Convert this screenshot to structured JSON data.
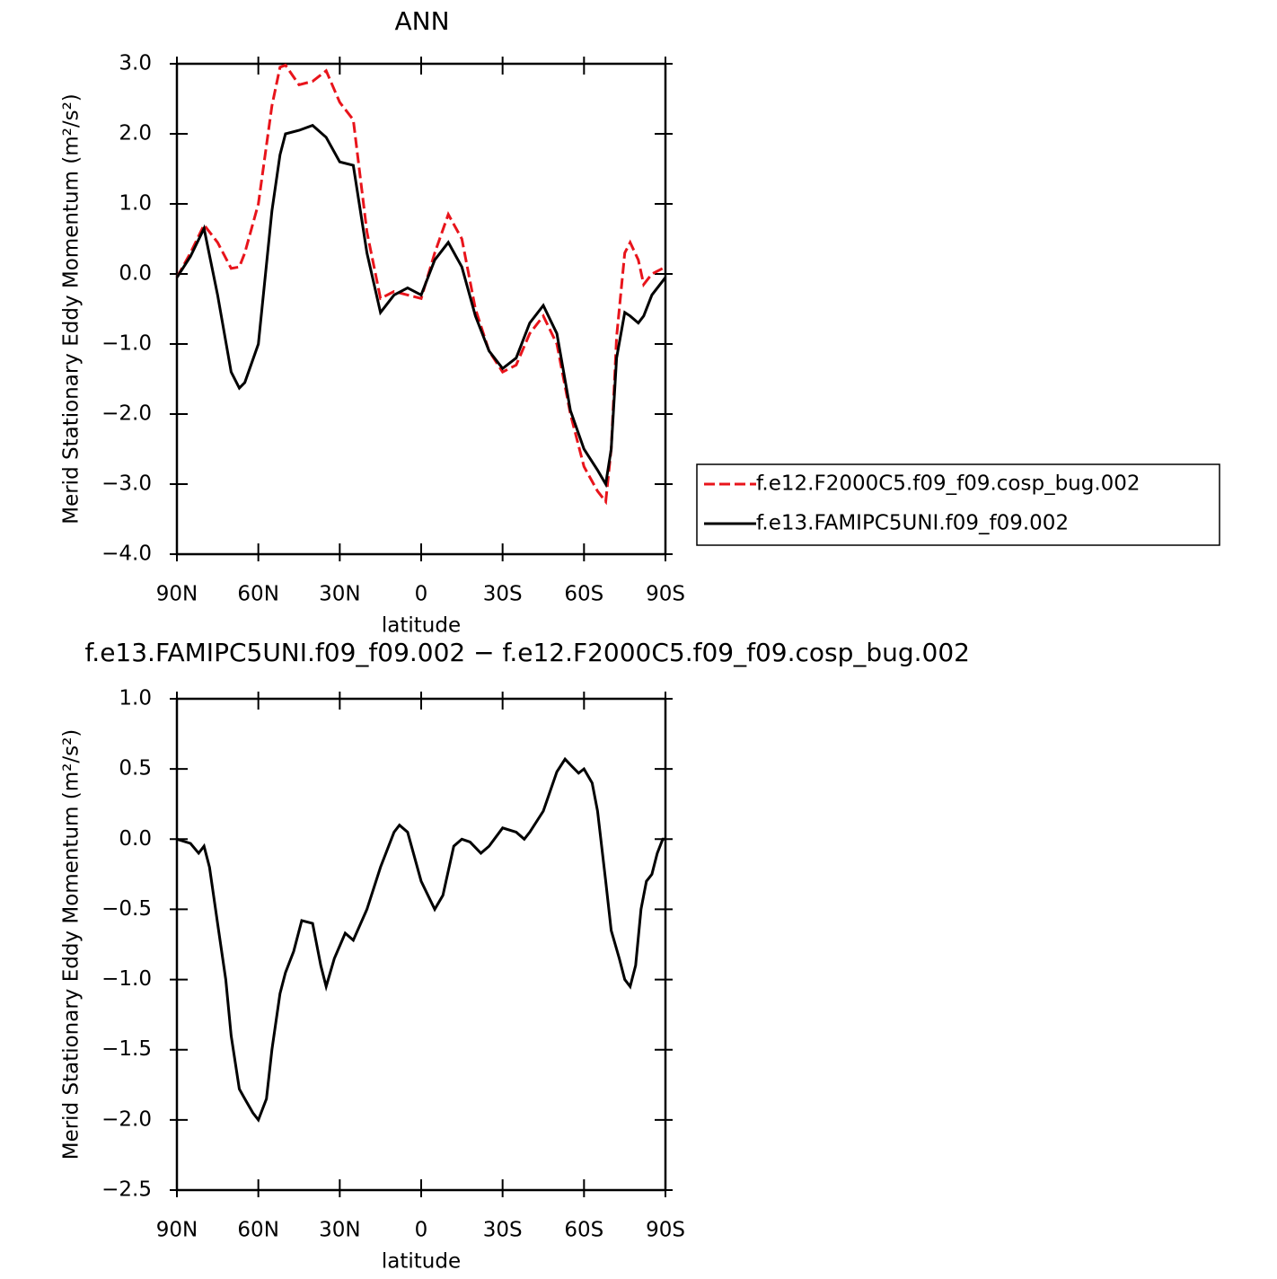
{
  "chart_data": [
    {
      "type": "line",
      "title": "ANN",
      "xlabel": "latitude",
      "ylabel": "Merid Stationary Eddy Momentum (m²/s²)",
      "x": [
        90,
        85,
        80,
        75,
        70,
        67,
        65,
        60,
        55,
        52,
        50,
        45,
        40,
        35,
        30,
        25,
        20,
        15,
        10,
        5,
        0,
        -5,
        -10,
        -15,
        -20,
        -25,
        -30,
        -35,
        -40,
        -45,
        -50,
        -55,
        -60,
        -65,
        -68,
        -70,
        -72,
        -75,
        -77,
        -80,
        -82,
        -85,
        -90
      ],
      "series": [
        {
          "name": "f.e12.F2000C5.f09_f09.cosp_bug.002",
          "color": "#e8141b",
          "linestyle": "dashed",
          "values": [
            -0.05,
            0.3,
            0.7,
            0.45,
            0.08,
            0.1,
            0.3,
            1.0,
            2.4,
            2.95,
            2.98,
            2.7,
            2.75,
            2.9,
            2.45,
            2.2,
            0.6,
            -0.35,
            -0.25,
            -0.3,
            -0.35,
            0.3,
            0.85,
            0.5,
            -0.5,
            -1.1,
            -1.4,
            -1.3,
            -0.85,
            -0.6,
            -1.0,
            -2.0,
            -2.75,
            -3.1,
            -3.25,
            -2.5,
            -0.9,
            0.3,
            0.45,
            0.2,
            -0.15,
            0.0,
            0.1
          ]
        },
        {
          "name": "f.e13.FAMIPC5UNI.f09_f09.002",
          "color": "#000000",
          "linestyle": "solid",
          "values": [
            -0.05,
            0.25,
            0.65,
            -0.3,
            -1.4,
            -1.63,
            -1.55,
            -1.0,
            0.9,
            1.7,
            2.0,
            2.05,
            2.12,
            1.95,
            1.6,
            1.55,
            0.3,
            -0.55,
            -0.3,
            -0.2,
            -0.3,
            0.2,
            0.45,
            0.1,
            -0.6,
            -1.1,
            -1.35,
            -1.2,
            -0.7,
            -0.45,
            -0.85,
            -1.95,
            -2.5,
            -2.8,
            -3.0,
            -2.5,
            -1.2,
            -0.55,
            -0.6,
            -0.7,
            -0.6,
            -0.3,
            -0.05
          ]
        }
      ],
      "xlim": [
        90,
        -90
      ],
      "xticks": [
        {
          "value": 90,
          "label": "90N"
        },
        {
          "value": 60,
          "label": "60N"
        },
        {
          "value": 30,
          "label": "30N"
        },
        0,
        {
          "value": -30,
          "label": "30S"
        },
        {
          "value": -60,
          "label": "60S"
        },
        {
          "value": -90,
          "label": "90S"
        }
      ],
      "ylim": [
        -4,
        3
      ],
      "yticks": [
        {
          "value": 3,
          "label": "3.0"
        },
        {
          "value": 2,
          "label": "2.0"
        },
        {
          "value": 1,
          "label": "1.0"
        },
        {
          "value": 0,
          "label": "0.0"
        },
        {
          "value": -1,
          "label": "−1.0"
        },
        {
          "value": -2,
          "label": "−2.0"
        },
        {
          "value": -3,
          "label": "−3.0"
        },
        {
          "value": -4,
          "label": "−4.0"
        }
      ],
      "legend": "right"
    },
    {
      "type": "line",
      "title": "f.e13.FAMIPC5UNI.f09_f09.002 − f.e12.F2000C5.f09_f09.cosp_bug.002",
      "xlabel": "latitude",
      "ylabel": "Merid Stationary Eddy Momentum (m²/s²)",
      "x": [
        90,
        85,
        82,
        80,
        78,
        75,
        72,
        70,
        67,
        65,
        62,
        60,
        57,
        55,
        52,
        50,
        47,
        44,
        40,
        37,
        35,
        32,
        28,
        25,
        20,
        15,
        10,
        8,
        5,
        0,
        -5,
        -8,
        -12,
        -15,
        -18,
        -22,
        -25,
        -30,
        -35,
        -38,
        -40,
        -45,
        -50,
        -53,
        -55,
        -58,
        -60,
        -63,
        -65,
        -68,
        -70,
        -73,
        -75,
        -77,
        -79,
        -81,
        -83,
        -85,
        -87,
        -89,
        -90
      ],
      "series": [
        {
          "color": "#000000",
          "linestyle": "solid",
          "values": [
            0.0,
            -0.03,
            -0.1,
            -0.05,
            -0.2,
            -0.6,
            -1.0,
            -1.4,
            -1.78,
            -1.85,
            -1.95,
            -2.0,
            -1.85,
            -1.5,
            -1.1,
            -0.95,
            -0.8,
            -0.58,
            -0.6,
            -0.9,
            -1.05,
            -0.85,
            -0.67,
            -0.72,
            -0.5,
            -0.2,
            0.05,
            0.1,
            0.05,
            -0.3,
            -0.5,
            -0.4,
            -0.05,
            0.0,
            -0.02,
            -0.1,
            -0.05,
            0.08,
            0.05,
            0.0,
            0.05,
            0.2,
            0.48,
            0.57,
            0.53,
            0.47,
            0.5,
            0.4,
            0.2,
            -0.3,
            -0.65,
            -0.85,
            -1.0,
            -1.05,
            -0.9,
            -0.5,
            -0.3,
            -0.25,
            -0.1,
            0.0,
            0.0
          ]
        }
      ],
      "xlim": [
        90,
        -90
      ],
      "xticks": [
        {
          "value": 90,
          "label": "90N"
        },
        {
          "value": 60,
          "label": "60N"
        },
        {
          "value": 30,
          "label": "30N"
        },
        0,
        {
          "value": -30,
          "label": "30S"
        },
        {
          "value": -60,
          "label": "60S"
        },
        {
          "value": -90,
          "label": "90S"
        }
      ],
      "ylim": [
        -2.5,
        1
      ],
      "yticks": [
        {
          "value": 1,
          "label": "1.0"
        },
        {
          "value": 0.5,
          "label": "0.5"
        },
        {
          "value": 0,
          "label": "0.0"
        },
        {
          "value": -0.5,
          "label": "−0.5"
        },
        {
          "value": -1,
          "label": "−1.0"
        },
        {
          "value": -1.5,
          "label": "−1.5"
        },
        {
          "value": -2,
          "label": "−2.0"
        },
        {
          "value": -2.5,
          "label": "−2.5"
        }
      ]
    }
  ]
}
